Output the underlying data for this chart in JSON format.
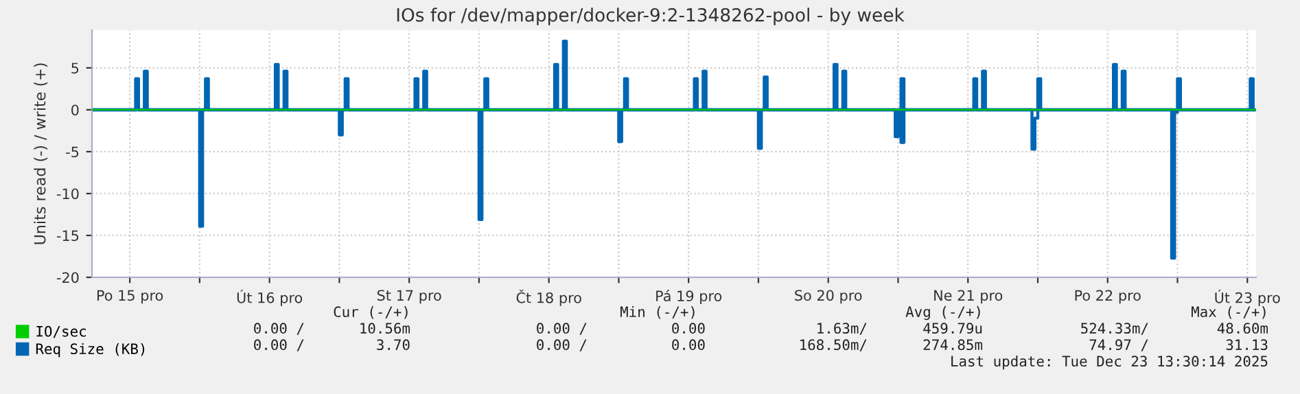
{
  "chart_data": {
    "type": "step",
    "title": "IOs for /dev/mapper/docker-9:2-1348262-pool - by week",
    "ylabel": "Units read (-) / write (+)",
    "xlim": [
      "2025-12-15T05:30",
      "2025-12-23T13:30"
    ],
    "xticks": [
      {
        "value": "2025-12-15T12:00",
        "label": "Po 15 pro"
      },
      {
        "value": "2025-12-16T00:00",
        "label": null
      },
      {
        "value": "2025-12-16T12:00",
        "label": "Út 16 pro"
      },
      {
        "value": "2025-12-17T00:00",
        "label": null
      },
      {
        "value": "2025-12-17T12:00",
        "label": "St 17 pro"
      },
      {
        "value": "2025-12-18T00:00",
        "label": null
      },
      {
        "value": "2025-12-18T12:00",
        "label": "Čt 18 pro"
      },
      {
        "value": "2025-12-19T00:00",
        "label": null
      },
      {
        "value": "2025-12-19T12:00",
        "label": "Pá 19 pro"
      },
      {
        "value": "2025-12-20T00:00",
        "label": null
      },
      {
        "value": "2025-12-20T12:00",
        "label": "So 20 pro"
      },
      {
        "value": "2025-12-21T00:00",
        "label": null
      },
      {
        "value": "2025-12-21T12:00",
        "label": "Ne 21 pro"
      },
      {
        "value": "2025-12-22T00:00",
        "label": null
      },
      {
        "value": "2025-12-22T12:00",
        "label": "Po 22 pro"
      },
      {
        "value": "2025-12-23T00:00",
        "label": null
      },
      {
        "value": "2025-12-23T12:00",
        "label": "Út 23 pro"
      }
    ],
    "ylim": [
      -20,
      9.5
    ],
    "yticks": [
      -20,
      -15,
      -10,
      -5,
      0,
      5
    ],
    "grid": true,
    "legend": "bottom left",
    "series": [
      {
        "name": "IO/sec",
        "color": "#00cc00",
        "x": [
          "2025-12-15T05:30",
          "2025-12-23T13:30"
        ],
        "values": [
          0,
          0
        ]
      },
      {
        "name": "Req Size (KB)",
        "color": "#0066b3",
        "x": [
          "2025-12-15T05:30",
          "2025-12-15T13:00",
          "2025-12-15T13:30",
          "2025-12-15T14:30",
          "2025-12-15T15:00",
          "2025-12-16T01:00",
          "2025-12-16T01:30",
          "2025-12-16T13:00",
          "2025-12-16T13:30",
          "2025-12-16T14:30",
          "2025-12-16T15:00",
          "2025-12-17T01:00",
          "2025-12-17T01:30",
          "2025-12-17T13:00",
          "2025-12-17T13:30",
          "2025-12-17T14:30",
          "2025-12-17T15:00",
          "2025-12-18T01:00",
          "2025-12-18T01:30",
          "2025-12-18T13:00",
          "2025-12-18T13:30",
          "2025-12-18T14:30",
          "2025-12-18T15:00",
          "2025-12-19T01:00",
          "2025-12-19T01:30",
          "2025-12-19T13:00",
          "2025-12-19T13:30",
          "2025-12-19T14:30",
          "2025-12-19T15:00",
          "2025-12-20T01:00",
          "2025-12-20T01:30",
          "2025-12-20T13:00",
          "2025-12-20T13:30",
          "2025-12-20T14:30",
          "2025-12-20T15:00",
          "2025-12-21T00:30",
          "2025-12-21T01:00",
          "2025-12-21T13:00",
          "2025-12-21T13:30",
          "2025-12-21T14:30",
          "2025-12-21T15:00",
          "2025-12-22T00:00",
          "2025-12-22T00:30",
          "2025-12-22T13:00",
          "2025-12-22T13:30",
          "2025-12-22T14:30",
          "2025-12-22T15:00",
          "2025-12-23T00:00",
          "2025-12-23T00:30",
          "2025-12-23T12:30",
          "2025-12-23T13:00"
        ],
        "values": [
          0,
          3.7,
          0,
          4.6,
          0,
          3.7,
          0,
          5.4,
          0,
          4.6,
          0,
          3.7,
          0,
          3.7,
          0,
          4.6,
          0,
          3.7,
          0,
          5.4,
          0,
          8.2,
          0,
          3.7,
          0,
          3.7,
          0,
          4.6,
          0,
          3.9,
          0,
          5.4,
          0,
          4.6,
          0,
          3.7,
          0,
          3.7,
          0,
          4.6,
          0,
          3.7,
          0,
          5.4,
          0,
          4.6,
          0,
          3.7,
          0,
          3.7,
          0
        ]
      },
      {
        "color": "#0066b3",
        "x": [
          "2025-12-15T05:30",
          "2025-12-16T00:00",
          "2025-12-16T00:30",
          "2025-12-17T00:00",
          "2025-12-17T00:30",
          "2025-12-18T00:00",
          "2025-12-18T00:30",
          "2025-12-19T00:00",
          "2025-12-19T00:30",
          "2025-12-20T00:00",
          "2025-12-20T00:30",
          "2025-12-20T23:30",
          "2025-12-21T00:00",
          "2025-12-21T00:30",
          "2025-12-21T01:00",
          "2025-12-21T23:00",
          "2025-12-21T23:30",
          "2025-12-22T00:00",
          "2025-12-22T23:00",
          "2025-12-22T23:30",
          "2025-12-23T00:00",
          "2025-12-23T13:30"
        ],
        "values": [
          0,
          -13.9,
          0,
          -3.0,
          0,
          -13.1,
          0,
          -3.8,
          0,
          -4.6,
          0,
          -3.2,
          0,
          -3.9,
          0,
          -4.7,
          -1.0,
          0,
          -17.7,
          -0.3,
          0,
          0
        ]
      }
    ],
    "annotations": [
      "Cur (-/+)",
      "Min (-/+)",
      "Avg (-/+)",
      "Max (-/+)",
      "0.00 /",
      "10.56m",
      "0.00 /",
      "0.00",
      "1.63m/",
      "459.79u",
      "524.33m/",
      "48.60m",
      "0.00 /",
      "3.70",
      "0.00 /",
      "0.00",
      "168.50m/",
      "274.85m",
      "74.97 /",
      "31.13",
      "Last update: Tue Dec 23 13:30:14 2025"
    ]
  }
}
